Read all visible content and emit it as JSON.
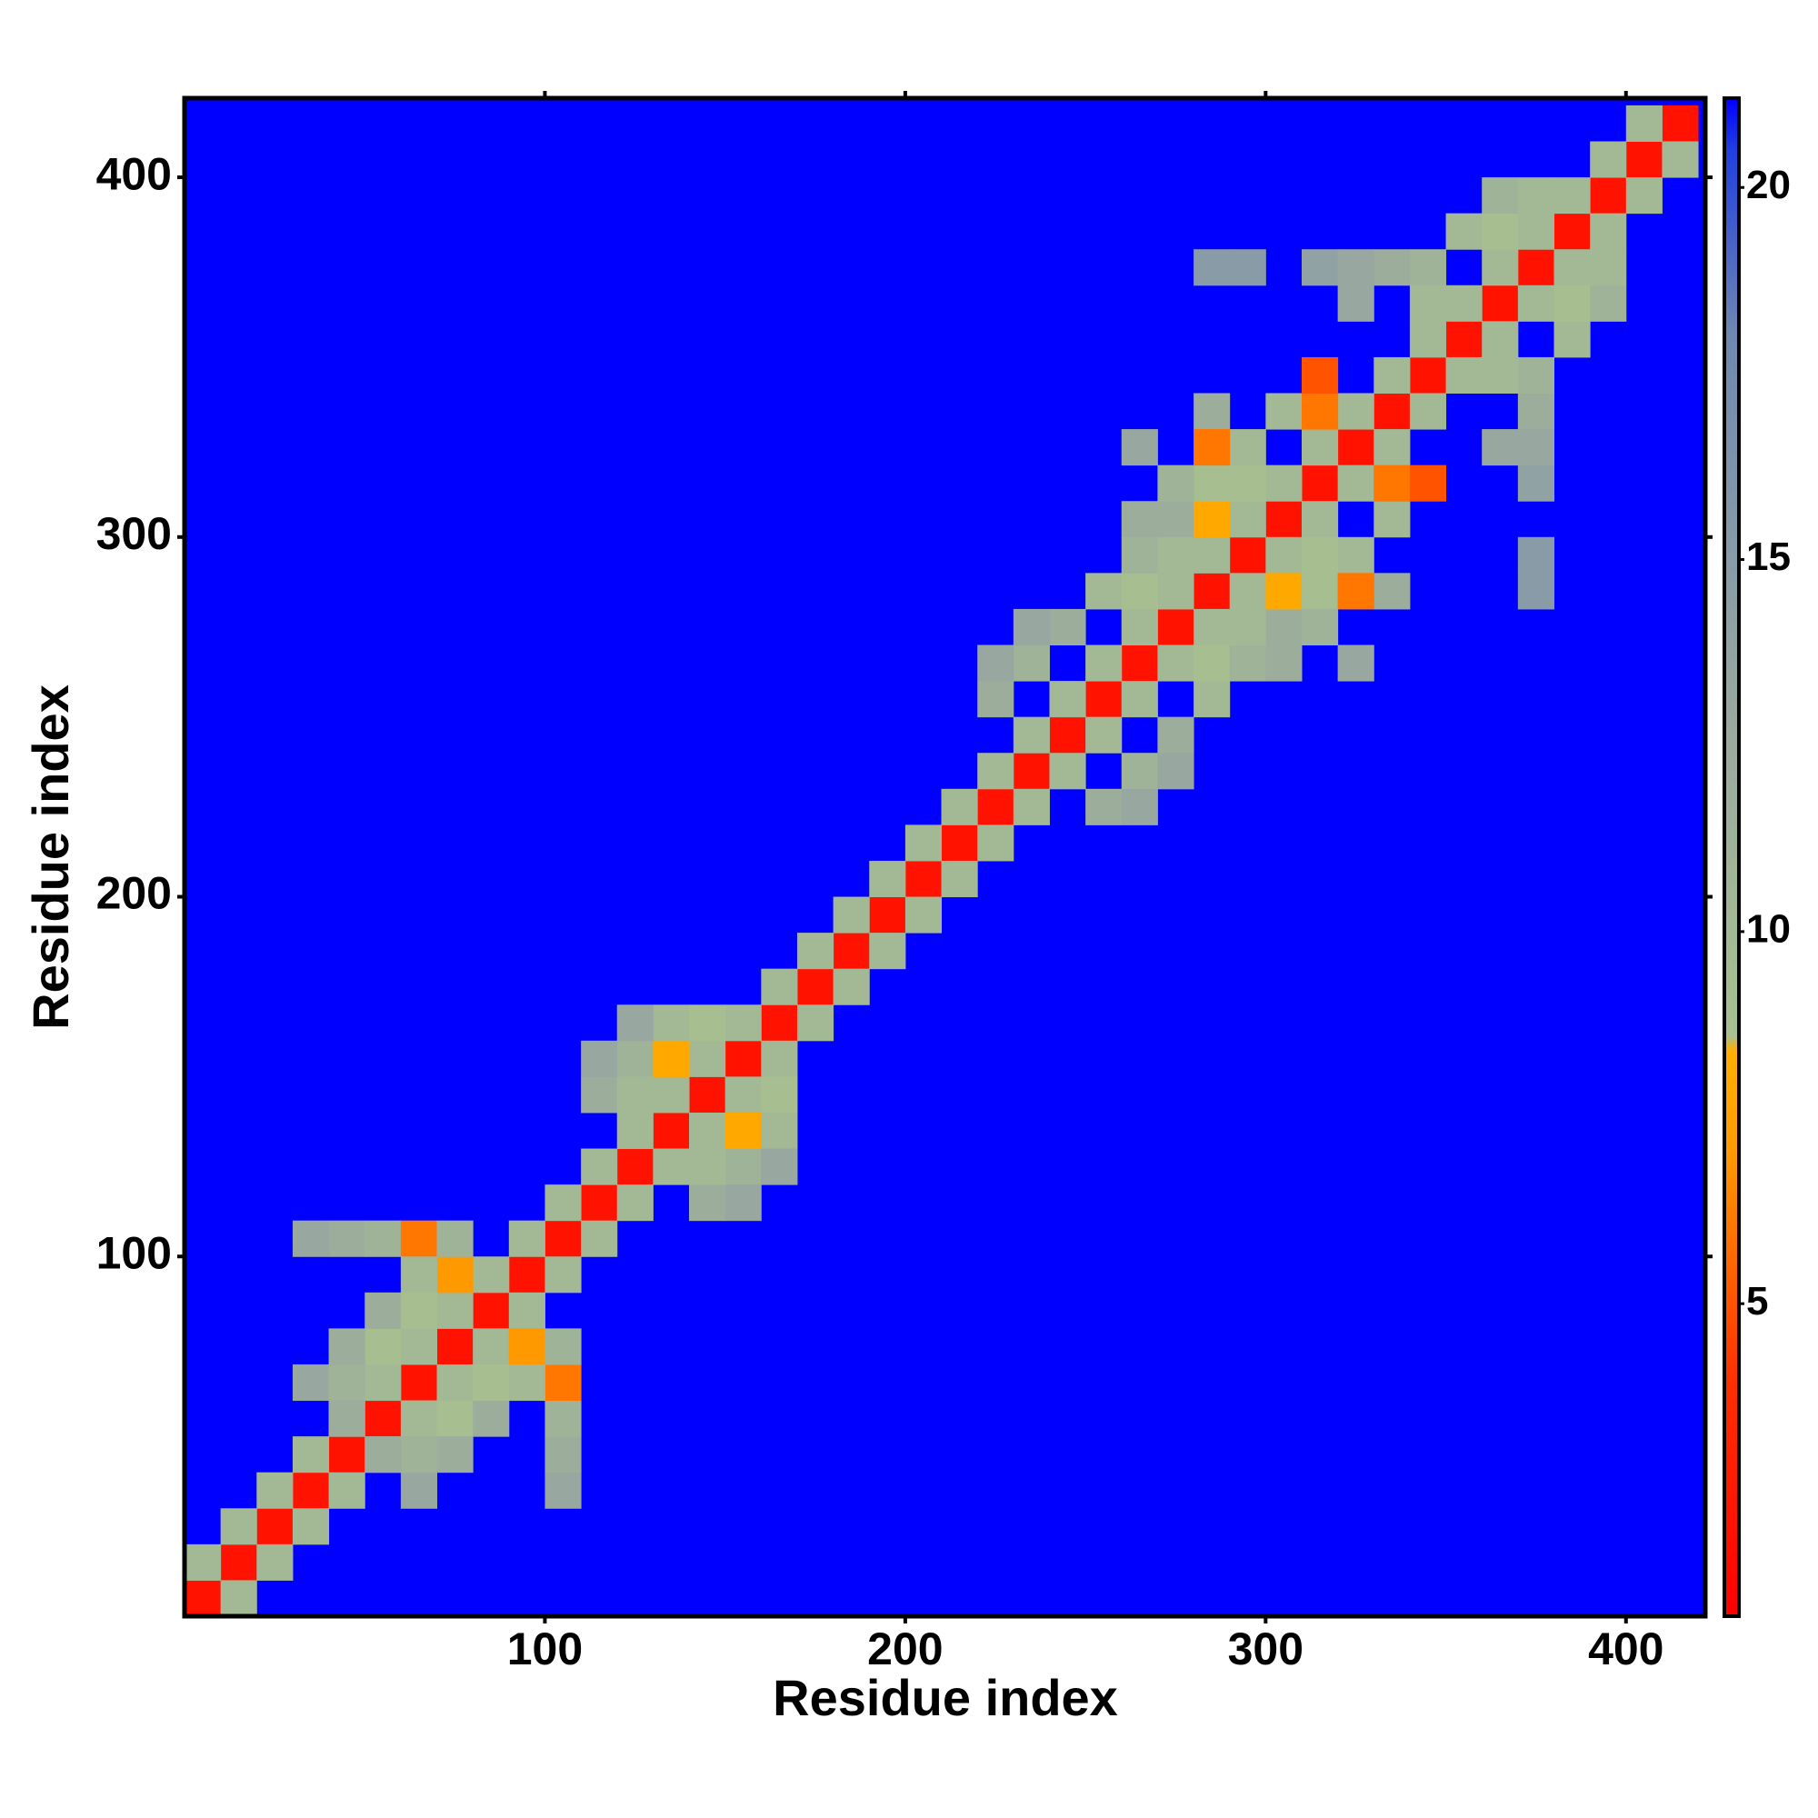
{
  "chart_data": {
    "type": "heatmap",
    "x_label": "Residue index",
    "y_label": "Residue index",
    "xlim": [
      0,
      422
    ],
    "ylim": [
      0,
      422
    ],
    "xticks": [
      100,
      200,
      300,
      400
    ],
    "yticks": [
      100,
      200,
      300,
      400
    ],
    "clim": [
      0.8,
      21.2
    ],
    "colorbar_ticks": [
      5,
      10,
      15,
      20
    ],
    "colormap": [
      [
        0.8,
        "#ff0000"
      ],
      [
        4,
        "#ff3000"
      ],
      [
        7,
        "#ff9900"
      ],
      [
        8.4,
        "#ffb000"
      ],
      [
        8.6,
        "#a8c090"
      ],
      [
        13,
        "#98a8a0"
      ],
      [
        18,
        "#7088b0"
      ],
      [
        20.5,
        "#2040e0"
      ],
      [
        21.2,
        "#0000ff"
      ]
    ],
    "cell_size": 10,
    "symmetric": true,
    "cells": [
      [
        0,
        0,
        2
      ],
      [
        10,
        10,
        2
      ],
      [
        20,
        20,
        2
      ],
      [
        30,
        30,
        2
      ],
      [
        40,
        40,
        2
      ],
      [
        50,
        50,
        2
      ],
      [
        60,
        60,
        2
      ],
      [
        70,
        70,
        2
      ],
      [
        80,
        80,
        2
      ],
      [
        90,
        90,
        2
      ],
      [
        100,
        100,
        2
      ],
      [
        110,
        110,
        2
      ],
      [
        120,
        120,
        2
      ],
      [
        130,
        130,
        2
      ],
      [
        140,
        140,
        2
      ],
      [
        150,
        150,
        2
      ],
      [
        160,
        160,
        2
      ],
      [
        170,
        170,
        2
      ],
      [
        180,
        180,
        2
      ],
      [
        190,
        190,
        2
      ],
      [
        200,
        200,
        2
      ],
      [
        210,
        210,
        2
      ],
      [
        220,
        220,
        2
      ],
      [
        230,
        230,
        2
      ],
      [
        240,
        240,
        2
      ],
      [
        250,
        250,
        2
      ],
      [
        260,
        260,
        2
      ],
      [
        270,
        270,
        2
      ],
      [
        280,
        280,
        2
      ],
      [
        290,
        290,
        2
      ],
      [
        300,
        300,
        2
      ],
      [
        310,
        310,
        2
      ],
      [
        320,
        320,
        2
      ],
      [
        330,
        330,
        2
      ],
      [
        340,
        340,
        2
      ],
      [
        350,
        350,
        2
      ],
      [
        360,
        360,
        2
      ],
      [
        370,
        370,
        2
      ],
      [
        380,
        380,
        2
      ],
      [
        390,
        390,
        2
      ],
      [
        400,
        400,
        2
      ],
      [
        410,
        410,
        2
      ],
      [
        0,
        10,
        10
      ],
      [
        10,
        20,
        10
      ],
      [
        20,
        30,
        10
      ],
      [
        30,
        40,
        10
      ],
      [
        40,
        50,
        10
      ],
      [
        50,
        60,
        10
      ],
      [
        60,
        70,
        10
      ],
      [
        70,
        80,
        10
      ],
      [
        80,
        90,
        10
      ],
      [
        90,
        100,
        10
      ],
      [
        100,
        110,
        10
      ],
      [
        110,
        120,
        10
      ],
      [
        120,
        130,
        10
      ],
      [
        130,
        140,
        10
      ],
      [
        140,
        150,
        10
      ],
      [
        150,
        160,
        10
      ],
      [
        160,
        170,
        10
      ],
      [
        170,
        180,
        10
      ],
      [
        180,
        190,
        10
      ],
      [
        190,
        200,
        10
      ],
      [
        200,
        210,
        10
      ],
      [
        210,
        220,
        10
      ],
      [
        220,
        230,
        10
      ],
      [
        230,
        240,
        10
      ],
      [
        240,
        250,
        10
      ],
      [
        250,
        260,
        10
      ],
      [
        260,
        270,
        10
      ],
      [
        270,
        280,
        10
      ],
      [
        280,
        290,
        10
      ],
      [
        290,
        300,
        10
      ],
      [
        300,
        310,
        10
      ],
      [
        310,
        320,
        10
      ],
      [
        320,
        330,
        10
      ],
      [
        330,
        340,
        10
      ],
      [
        340,
        350,
        10
      ],
      [
        350,
        360,
        10
      ],
      [
        360,
        370,
        10
      ],
      [
        370,
        380,
        10
      ],
      [
        380,
        390,
        10
      ],
      [
        390,
        400,
        10
      ],
      [
        400,
        410,
        10
      ],
      [
        30,
        60,
        13
      ],
      [
        40,
        60,
        11
      ],
      [
        40,
        50,
        12
      ],
      [
        50,
        70,
        9
      ],
      [
        40,
        100,
        12
      ],
      [
        50,
        100,
        11
      ],
      [
        60,
        100,
        6
      ],
      [
        70,
        90,
        7
      ],
      [
        30,
        100,
        13
      ],
      [
        60,
        90,
        10
      ],
      [
        70,
        100,
        11
      ],
      [
        50,
        80,
        12
      ],
      [
        40,
        70,
        12
      ],
      [
        60,
        80,
        9
      ],
      [
        120,
        150,
        11
      ],
      [
        110,
        140,
        12
      ],
      [
        130,
        160,
        10
      ],
      [
        120,
        160,
        13
      ],
      [
        130,
        150,
        8
      ],
      [
        140,
        160,
        9
      ],
      [
        110,
        150,
        13
      ],
      [
        120,
        140,
        10
      ],
      [
        220,
        250,
        12
      ],
      [
        230,
        260,
        11
      ],
      [
        240,
        270,
        12
      ],
      [
        250,
        280,
        10
      ],
      [
        220,
        260,
        13
      ],
      [
        260,
        280,
        9
      ],
      [
        230,
        270,
        13
      ],
      [
        260,
        290,
        11
      ],
      [
        270,
        300,
        12
      ],
      [
        280,
        300,
        8
      ],
      [
        280,
        310,
        9
      ],
      [
        270,
        310,
        11
      ],
      [
        260,
        320,
        13
      ],
      [
        290,
        320,
        10
      ],
      [
        300,
        330,
        10
      ],
      [
        310,
        330,
        6
      ],
      [
        280,
        330,
        12
      ],
      [
        290,
        310,
        9
      ],
      [
        260,
        300,
        12
      ],
      [
        270,
        290,
        10
      ],
      [
        280,
        320,
        6
      ],
      [
        310,
        340,
        5
      ],
      [
        320,
        360,
        13
      ],
      [
        310,
        370,
        14
      ],
      [
        330,
        370,
        12
      ],
      [
        340,
        370,
        11
      ],
      [
        350,
        380,
        10
      ],
      [
        360,
        380,
        9
      ],
      [
        340,
        360,
        10
      ],
      [
        320,
        370,
        13
      ],
      [
        280,
        370,
        15
      ],
      [
        290,
        370,
        15
      ],
      [
        360,
        390,
        11
      ],
      [
        370,
        390,
        10
      ]
    ]
  }
}
